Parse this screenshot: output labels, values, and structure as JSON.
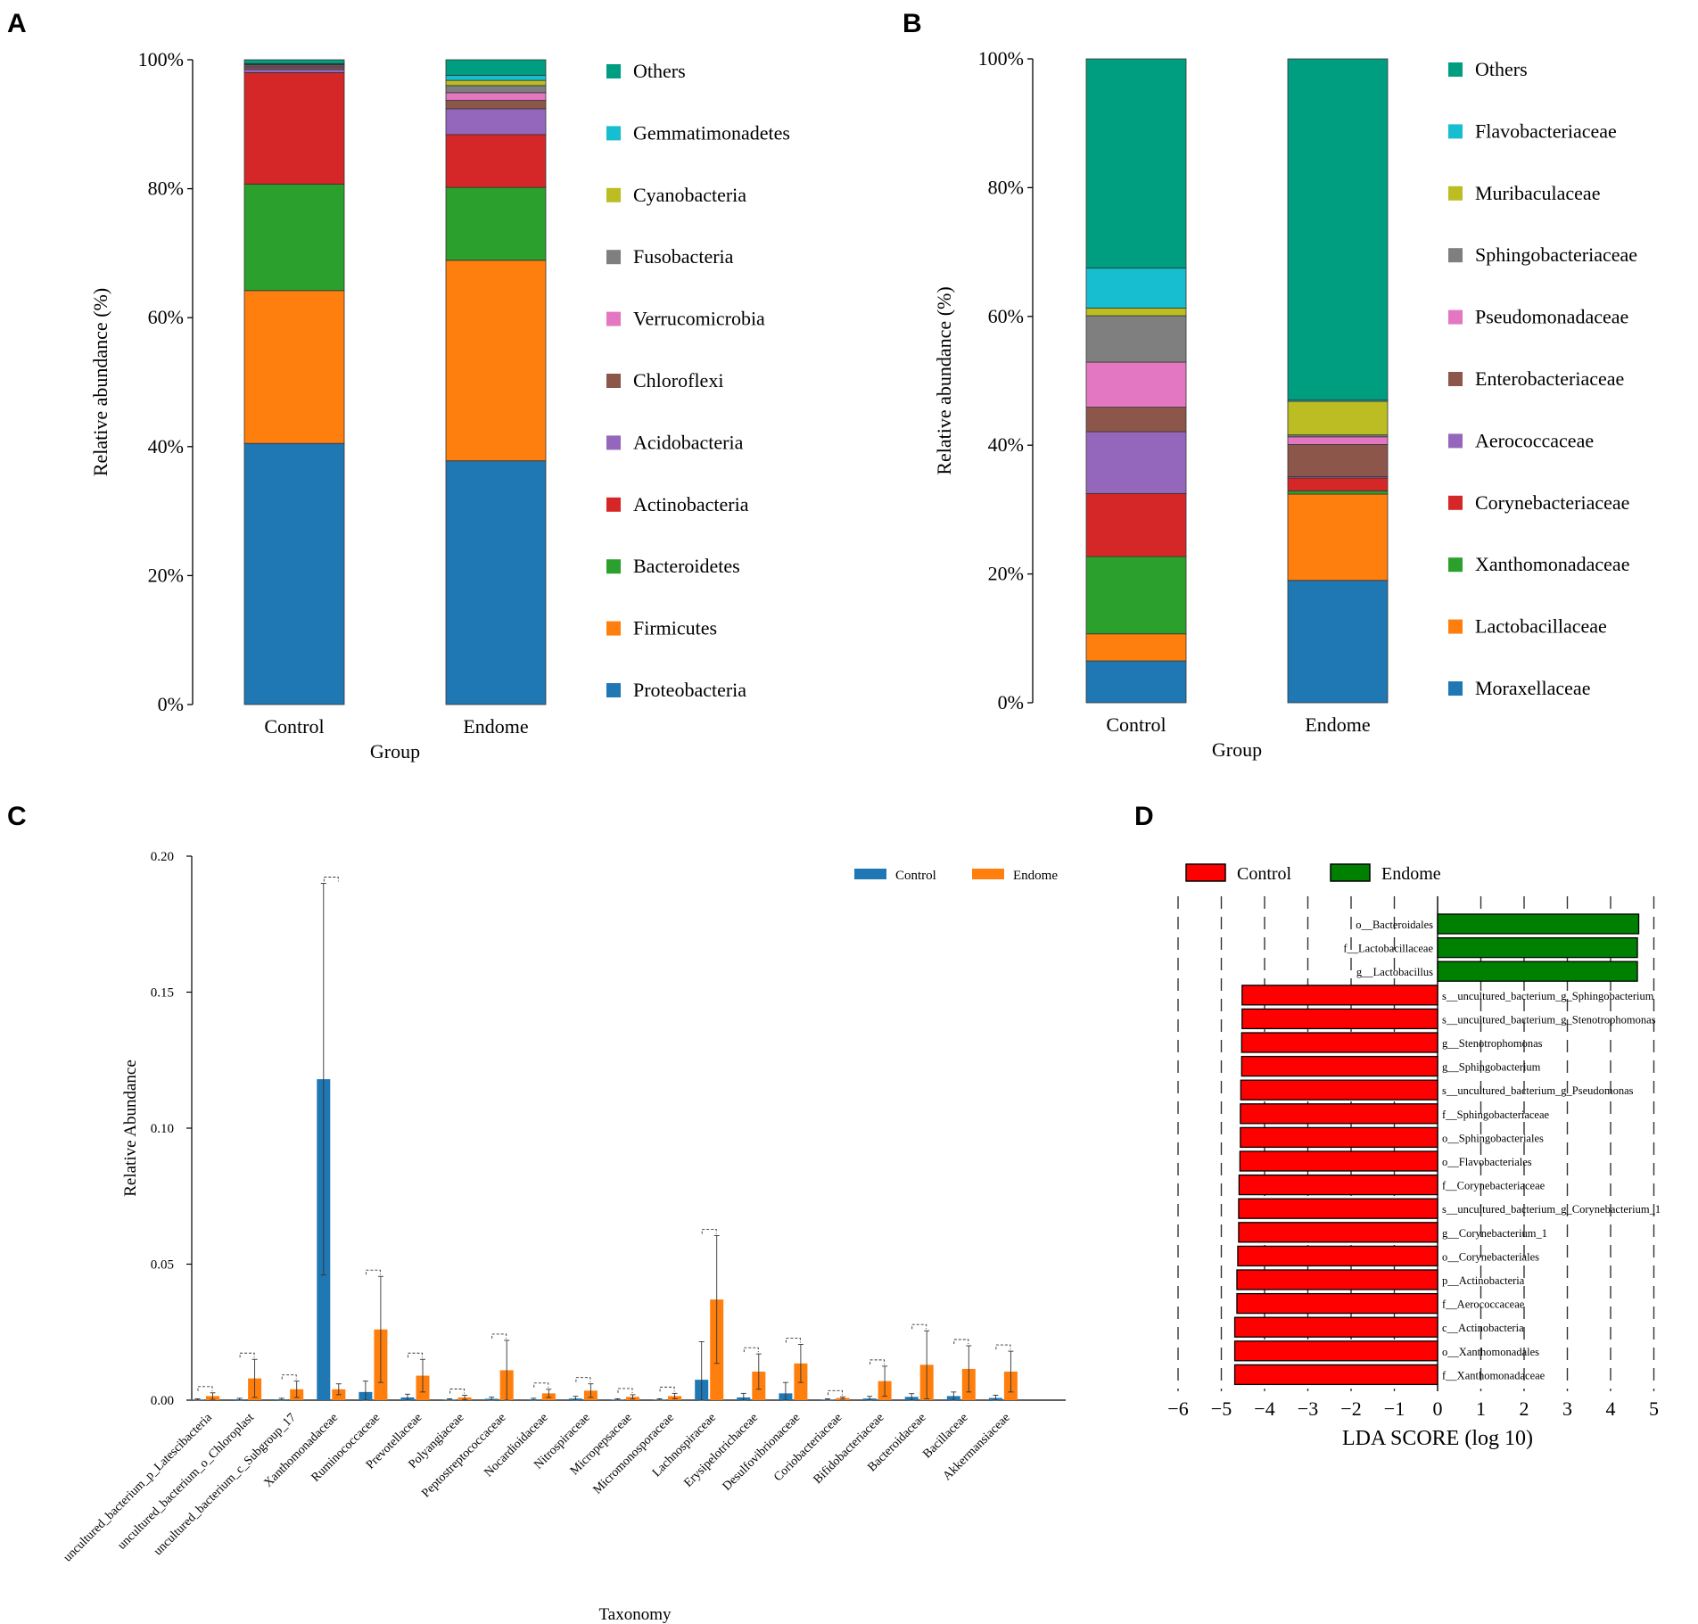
{
  "panel_letters": [
    "A",
    "B",
    "C",
    "D"
  ],
  "chart_data": [
    {
      "panel": "A",
      "type": "bar",
      "stacked": true,
      "xlabel": "Group",
      "ylabel": "Relative abundance (%)",
      "ylim": [
        0,
        100
      ],
      "yticks": [
        "0%",
        "20%",
        "40%",
        "60%",
        "80%",
        "100%"
      ],
      "categories": [
        "Control",
        "Endome"
      ],
      "series": [
        {
          "name": "Proteobacteria",
          "color": "#1f77b4",
          "values": [
            40.5,
            37.8
          ]
        },
        {
          "name": "Firmicutes",
          "color": "#ff7f0e",
          "values": [
            23.7,
            31.1
          ]
        },
        {
          "name": "Bacteroidetes",
          "color": "#2ca02c",
          "values": [
            16.5,
            11.3
          ]
        },
        {
          "name": "Actinobacteria",
          "color": "#d62728",
          "values": [
            17.3,
            8.2
          ]
        },
        {
          "name": "Acidobacteria",
          "color": "#9467bd",
          "values": [
            0.5,
            4.0
          ]
        },
        {
          "name": "Chloroflexi",
          "color": "#8c564b",
          "values": [
            0.3,
            1.3
          ]
        },
        {
          "name": "Verrucomicrobia",
          "color": "#e377c2",
          "values": [
            0.2,
            1.2
          ]
        },
        {
          "name": "Fusobacteria",
          "color": "#7f7f7f",
          "values": [
            0.2,
            1.1
          ]
        },
        {
          "name": "Cyanobacteria",
          "color": "#bcbd22",
          "values": [
            0.1,
            0.8
          ]
        },
        {
          "name": "Gemmatimonadetes",
          "color": "#17becf",
          "values": [
            0.1,
            0.8
          ]
        },
        {
          "name": "Others",
          "color": "#009e80",
          "values": [
            0.6,
            2.4
          ]
        }
      ]
    },
    {
      "panel": "B",
      "type": "bar",
      "stacked": true,
      "xlabel": "Group",
      "ylabel": "Relative abundance (%)",
      "ylim": [
        0,
        100
      ],
      "yticks": [
        "0%",
        "20%",
        "40%",
        "60%",
        "80%",
        "100%"
      ],
      "categories": [
        "Control",
        "Endome"
      ],
      "series": [
        {
          "name": "Moraxellaceae",
          "color": "#1f77b4",
          "values": [
            6.5,
            19.0
          ]
        },
        {
          "name": "Lactobacillaceae",
          "color": "#ff7f0e",
          "values": [
            4.2,
            13.4
          ]
        },
        {
          "name": "Xanthomonadaceae",
          "color": "#2ca02c",
          "values": [
            12.0,
            0.5
          ]
        },
        {
          "name": "Corynebacteriaceae",
          "color": "#d62728",
          "values": [
            9.8,
            2.0
          ]
        },
        {
          "name": "Aerococcaceae",
          "color": "#9467bd",
          "values": [
            9.6,
            0.2
          ]
        },
        {
          "name": "Enterobacteriaceae",
          "color": "#8c564b",
          "values": [
            3.8,
            5.0
          ]
        },
        {
          "name": "Pseudomonadaceae",
          "color": "#e377c2",
          "values": [
            7.0,
            1.2
          ]
        },
        {
          "name": "Sphingobacteriaceae",
          "color": "#7f7f7f",
          "values": [
            7.2,
            0.3
          ]
        },
        {
          "name": "Muribaculaceae",
          "color": "#bcbd22",
          "values": [
            1.2,
            5.2
          ]
        },
        {
          "name": "Flavobacteriaceae",
          "color": "#17becf",
          "values": [
            6.2,
            0.2
          ]
        },
        {
          "name": "Others",
          "color": "#009e80",
          "values": [
            32.5,
            53.0
          ]
        }
      ]
    },
    {
      "panel": "C",
      "type": "bar",
      "grouped": true,
      "xlabel": "Taxonomy",
      "ylabel": "Relative Abundance",
      "ylim": [
        0,
        0.2
      ],
      "yticks": [
        "0.00",
        "0.05",
        "0.10",
        "0.15",
        "0.20"
      ],
      "categories": [
        "uncultured_bacterium_p_Latescibacteria",
        "uncultured_bacterium_o_Chloroplast",
        "uncultured_bacterium_c_Subgroup_17",
        "Xanthomonadaceae",
        "Ruminococcaceae",
        "Prevotellaceae",
        "Polyangiaceae",
        "Peptostreptococcaceae",
        "Nocardioidaceae",
        "Nitrospiraceae",
        "Micropepsaceae",
        "Micromonosporaceae",
        "Lachnospiraceae",
        "Erysipelotrichaceae",
        "Desulfovibrionaceae",
        "Coriobacteriaceae",
        "Bifidobacteriaceae",
        "Bacteroidaceae",
        "Bacillaceae",
        "Akkermansiaceae"
      ],
      "series": [
        {
          "name": "Control",
          "color": "#1f77b4",
          "values": [
            0.0002,
            0.0003,
            0.0003,
            0.118,
            0.003,
            0.001,
            0.0002,
            0.0005,
            0.0003,
            0.0006,
            0.0002,
            0.0002,
            0.0075,
            0.001,
            0.0025,
            0.0002,
            0.0006,
            0.0012,
            0.0015,
            0.0008
          ],
          "errors": [
            0.0003,
            0.0004,
            0.0004,
            0.072,
            0.004,
            0.0012,
            0.0003,
            0.0006,
            0.0004,
            0.0008,
            0.0003,
            0.0003,
            0.014,
            0.0015,
            0.004,
            0.0003,
            0.0008,
            0.0012,
            0.0015,
            0.001
          ]
        },
        {
          "name": "Endome",
          "color": "#ff7f0e",
          "values": [
            0.0015,
            0.008,
            0.004,
            0.004,
            0.026,
            0.009,
            0.001,
            0.011,
            0.0025,
            0.0035,
            0.0012,
            0.0015,
            0.037,
            0.0105,
            0.0135,
            0.0008,
            0.007,
            0.013,
            0.0115,
            0.0105
          ],
          "errors": [
            0.0012,
            0.007,
            0.003,
            0.002,
            0.0195,
            0.006,
            0.0008,
            0.011,
            0.0015,
            0.0025,
            0.0008,
            0.001,
            0.0235,
            0.0065,
            0.007,
            0.0004,
            0.0055,
            0.0125,
            0.0085,
            0.0075
          ]
        }
      ]
    },
    {
      "panel": "D",
      "type": "bar",
      "orientation": "horizontal",
      "xlabel": "LDA SCORE (log 10)",
      "xlim": [
        -6,
        5
      ],
      "xticks": [
        "−6",
        "−5",
        "−4",
        "−3",
        "−2",
        "−1",
        "0",
        "1",
        "2",
        "3",
        "4",
        "5"
      ],
      "legend": [
        {
          "name": "Control",
          "color": "#ff0000"
        },
        {
          "name": "Endome",
          "color": "#008000"
        }
      ],
      "bars": [
        {
          "label": "o__Bacteroidales",
          "value": 4.65,
          "group": "Endome"
        },
        {
          "label": "f__Lactobacillaceae",
          "value": 4.62,
          "group": "Endome"
        },
        {
          "label": "g__Lactobacillus",
          "value": 4.62,
          "group": "Endome"
        },
        {
          "label": "s__uncultured_bacterium_g_Sphingobacterium",
          "value": -4.52,
          "group": "Control"
        },
        {
          "label": "s__uncultured_bacterium_g_Stenotrophomonas",
          "value": -4.52,
          "group": "Control"
        },
        {
          "label": "g__Stenotrophomonas",
          "value": -4.53,
          "group": "Control"
        },
        {
          "label": "g__Sphingobacterium",
          "value": -4.53,
          "group": "Control"
        },
        {
          "label": "s__uncultured_bacterium_g_Pseudomonas",
          "value": -4.55,
          "group": "Control"
        },
        {
          "label": "f__Sphingobacteriaceae",
          "value": -4.56,
          "group": "Control"
        },
        {
          "label": "o__Sphingobacteriales",
          "value": -4.56,
          "group": "Control"
        },
        {
          "label": "o__Flavobacteriales",
          "value": -4.57,
          "group": "Control"
        },
        {
          "label": "f__Corynebacteriaceae",
          "value": -4.59,
          "group": "Control"
        },
        {
          "label": "s__uncultured_bacterium_g_Corynebacterium_1",
          "value": -4.6,
          "group": "Control"
        },
        {
          "label": "g__Corynebacterium_1",
          "value": -4.6,
          "group": "Control"
        },
        {
          "label": "o__Corynebacteriales",
          "value": -4.62,
          "group": "Control"
        },
        {
          "label": "p__Actinobacteria",
          "value": -4.64,
          "group": "Control"
        },
        {
          "label": "f__Aerococcaceae",
          "value": -4.64,
          "group": "Control"
        },
        {
          "label": "c__Actinobacteria",
          "value": -4.69,
          "group": "Control"
        },
        {
          "label": "o__Xanthomonadales",
          "value": -4.69,
          "group": "Control"
        },
        {
          "label": "f__Xanthomonadaceae",
          "value": -4.69,
          "group": "Control"
        }
      ]
    }
  ]
}
